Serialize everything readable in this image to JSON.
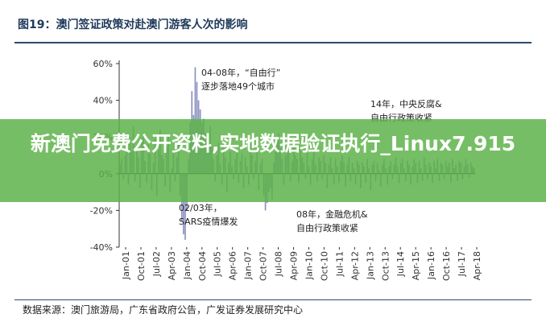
{
  "figure": {
    "title": "图19：澳门签证政策对赴澳门游客人次的影响",
    "source": "数据来源：澳门旅游局，广东省政府公告，广发证券发展研究中心"
  },
  "overlay": {
    "headline": "新澳门免费公开资料,实地数据验证执行_Linux7.915"
  },
  "colors": {
    "bar": "#8a92bf",
    "axis": "#333333",
    "overlay": "#5cb248",
    "title": "#1f3a5a"
  },
  "chart_data": {
    "type": "bar",
    "title": "图19：澳门签证政策对赴澳门游客人次的影响",
    "xlabel": "",
    "ylabel": "",
    "ylim": [
      -40,
      60
    ],
    "y_ticks": [
      "60%",
      "40%",
      "20%",
      "0%",
      "-20%",
      "-40%"
    ],
    "x_ticks": [
      "Jan-01",
      "Oct-01",
      "Jul-02",
      "Apr-03",
      "Jan-04",
      "Oct-04",
      "Jul-05",
      "Apr-06",
      "Jan-07",
      "Oct-07",
      "Jul-08",
      "Apr-09",
      "Jan-10",
      "Oct-10",
      "Jul-11",
      "Apr-12",
      "Jan-13",
      "Oct-13",
      "Jul-14",
      "Apr-15",
      "Jan-16",
      "Oct-16",
      "Jul-17",
      "Apr-18"
    ],
    "series": [
      {
        "values": [
          5,
          8,
          -3,
          10,
          15,
          -6,
          20,
          12,
          26,
          -4,
          14,
          9,
          -8,
          18,
          22,
          7,
          -5,
          16,
          11,
          -9,
          6,
          19,
          -12,
          13,
          24,
          10,
          8,
          -7,
          15,
          21,
          -10,
          3,
          12,
          -4,
          9,
          17,
          -12,
          -26,
          -33,
          -36,
          -20,
          8,
          28,
          45,
          32,
          58,
          50,
          40,
          35,
          28,
          30,
          22,
          18,
          12,
          26,
          15,
          8,
          -4,
          10,
          17,
          5,
          -6,
          14,
          9,
          -10,
          6,
          12,
          4,
          -3,
          8,
          13,
          -5,
          7,
          11,
          -8,
          9,
          4,
          -6,
          16,
          10,
          -3,
          7,
          12,
          -9,
          5,
          8,
          -12,
          -20,
          -16,
          -10,
          -8,
          -14,
          6,
          12,
          18,
          22,
          14,
          8,
          -6,
          10,
          16,
          12,
          -4,
          7,
          15,
          10,
          8,
          -5,
          13,
          9,
          6,
          -3,
          11,
          4,
          -6,
          8,
          12,
          5,
          -4,
          9,
          7,
          -3,
          10,
          6,
          -8,
          5,
          9,
          3,
          -6,
          8,
          4,
          -5,
          7,
          10,
          6,
          -7,
          5,
          9,
          -4,
          6,
          3,
          -6,
          7,
          5,
          -8,
          6,
          4,
          -5,
          8,
          3,
          -9,
          5,
          7,
          -4,
          6,
          2,
          -7,
          5,
          8,
          3,
          -6,
          4,
          7,
          -3,
          5,
          9,
          4,
          -5,
          6,
          8,
          3,
          -4,
          7,
          5,
          -6,
          4,
          8,
          6,
          -5,
          7,
          3,
          -4,
          9,
          5,
          -3,
          6,
          4,
          -5,
          7,
          3,
          8,
          -4,
          6,
          5,
          -3,
          7,
          4,
          6,
          -5,
          8,
          3,
          5,
          -4,
          7,
          6,
          -3,
          4,
          8,
          5,
          -2,
          6,
          4,
          3
        ]
      }
    ],
    "annotations": [
      {
        "lines": [
          "04-08年，“自由行”",
          "逐步落地49个城市"
        ]
      },
      {
        "lines": [
          "14年，中央反腐&",
          "自由行政策收紧"
        ]
      },
      {
        "lines": [
          "02/03年，",
          "SARS疫情爆发"
        ]
      },
      {
        "lines": [
          "08年，金融危机&",
          "自由行政策收紧"
        ]
      }
    ],
    "grid": false
  }
}
